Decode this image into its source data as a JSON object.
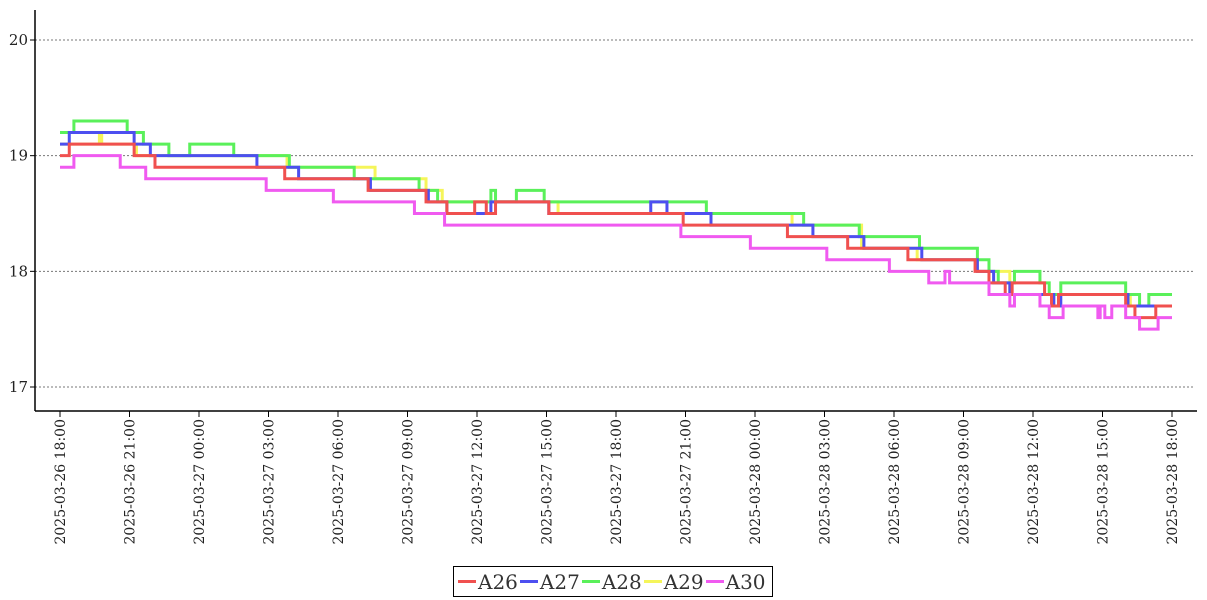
{
  "chart_data": {
    "type": "line",
    "step": true,
    "title": "",
    "xlabel": "",
    "ylabel": "",
    "ylim": [
      16.78,
      20.26
    ],
    "yticks": [
      17,
      18,
      19,
      20
    ],
    "ytick_labels": [
      "17",
      "18",
      "19",
      "20"
    ],
    "x_unit": "hours since 2025-03-26 18:00",
    "xlim": [
      0,
      48
    ],
    "xticks": [
      0,
      3,
      6,
      9,
      12,
      15,
      18,
      21,
      24,
      27,
      30,
      33,
      36,
      39,
      42,
      45,
      48
    ],
    "xtick_labels": [
      "2025-03-26 18:00",
      "2025-03-26 21:00",
      "2025-03-27 00:00",
      "2025-03-27 03:00",
      "2025-03-27 06:00",
      "2025-03-27 09:00",
      "2025-03-27 12:00",
      "2025-03-27 15:00",
      "2025-03-27 18:00",
      "2025-03-27 21:00",
      "2025-03-28 00:00",
      "2025-03-28 03:00",
      "2025-03-28 06:00",
      "2025-03-28 09:00",
      "2025-03-28 12:00",
      "2025-03-28 15:00",
      "2025-03-28 18:00"
    ],
    "grid": "horizontal-dotted",
    "legend_position": "bottom-center",
    "series": [
      {
        "name": "A26",
        "color": "#f0504f",
        "steps": [
          [
            0,
            19.0
          ],
          [
            0.4,
            19.1
          ],
          [
            3.2,
            19.0
          ],
          [
            4.1,
            18.9
          ],
          [
            9.7,
            18.8
          ],
          [
            13.3,
            18.7
          ],
          [
            15.8,
            18.6
          ],
          [
            16.7,
            18.5
          ],
          [
            17.9,
            18.6
          ],
          [
            18.4,
            18.5
          ],
          [
            18.8,
            18.6
          ],
          [
            21.1,
            18.5
          ],
          [
            26.9,
            18.4
          ],
          [
            31.4,
            18.3
          ],
          [
            34.0,
            18.2
          ],
          [
            36.6,
            18.1
          ],
          [
            39.5,
            18.0
          ],
          [
            40.1,
            17.9
          ],
          [
            40.8,
            17.8
          ],
          [
            41.1,
            17.9
          ],
          [
            42.5,
            17.8
          ],
          [
            42.8,
            17.7
          ],
          [
            43.1,
            17.8
          ],
          [
            46.0,
            17.7
          ],
          [
            46.4,
            17.6
          ],
          [
            47.3,
            17.7
          ],
          [
            48.0,
            17.7
          ]
        ]
      },
      {
        "name": "A27",
        "color": "#4d4ff0",
        "steps": [
          [
            0,
            19.1
          ],
          [
            0.4,
            19.2
          ],
          [
            3.2,
            19.1
          ],
          [
            3.9,
            19.0
          ],
          [
            8.5,
            18.9
          ],
          [
            10.3,
            18.8
          ],
          [
            13.4,
            18.7
          ],
          [
            15.9,
            18.6
          ],
          [
            16.7,
            18.5
          ],
          [
            18.6,
            18.6
          ],
          [
            21.1,
            18.5
          ],
          [
            25.5,
            18.6
          ],
          [
            26.2,
            18.5
          ],
          [
            28.1,
            18.4
          ],
          [
            32.5,
            18.3
          ],
          [
            34.7,
            18.2
          ],
          [
            37.2,
            18.1
          ],
          [
            39.6,
            18.0
          ],
          [
            40.3,
            17.9
          ],
          [
            41.0,
            17.8
          ],
          [
            42.9,
            17.7
          ],
          [
            43.2,
            17.8
          ],
          [
            46.1,
            17.7
          ],
          [
            48.0,
            17.7
          ]
        ]
      },
      {
        "name": "A28",
        "color": "#5af05a",
        "steps": [
          [
            0,
            19.2
          ],
          [
            0.6,
            19.3
          ],
          [
            2.9,
            19.2
          ],
          [
            3.6,
            19.1
          ],
          [
            4.7,
            19.0
          ],
          [
            5.6,
            19.1
          ],
          [
            7.5,
            19.0
          ],
          [
            9.9,
            18.9
          ],
          [
            12.7,
            18.8
          ],
          [
            15.5,
            18.7
          ],
          [
            16.3,
            18.6
          ],
          [
            18.6,
            18.7
          ],
          [
            18.8,
            18.6
          ],
          [
            19.7,
            18.7
          ],
          [
            20.9,
            18.6
          ],
          [
            27.9,
            18.5
          ],
          [
            32.1,
            18.4
          ],
          [
            34.5,
            18.3
          ],
          [
            37.1,
            18.2
          ],
          [
            39.6,
            18.1
          ],
          [
            40.1,
            18.0
          ],
          [
            40.5,
            17.9
          ],
          [
            41.2,
            18.0
          ],
          [
            42.3,
            17.9
          ],
          [
            42.7,
            17.8
          ],
          [
            43.2,
            17.9
          ],
          [
            46.0,
            17.8
          ],
          [
            46.6,
            17.7
          ],
          [
            47.0,
            17.8
          ],
          [
            48.0,
            17.8
          ]
        ]
      },
      {
        "name": "A29",
        "color": "#f5f55a",
        "steps": [
          [
            0,
            19.1
          ],
          [
            1.7,
            19.2
          ],
          [
            1.8,
            19.1
          ],
          [
            3.3,
            19.0
          ],
          [
            9.8,
            18.9
          ],
          [
            13.6,
            18.8
          ],
          [
            15.8,
            18.7
          ],
          [
            16.5,
            18.6
          ],
          [
            21.5,
            18.5
          ],
          [
            27.1,
            18.5
          ],
          [
            31.6,
            18.4
          ],
          [
            34.6,
            18.2
          ],
          [
            37.0,
            18.1
          ],
          [
            39.6,
            18.0
          ],
          [
            41.0,
            17.8
          ],
          [
            44.7,
            17.8
          ],
          [
            46.2,
            17.7
          ],
          [
            48.0,
            17.7
          ]
        ]
      },
      {
        "name": "A30",
        "color": "#f05af0",
        "steps": [
          [
            0,
            18.9
          ],
          [
            0.6,
            19.0
          ],
          [
            2.6,
            18.9
          ],
          [
            3.7,
            18.8
          ],
          [
            8.9,
            18.7
          ],
          [
            11.8,
            18.6
          ],
          [
            15.3,
            18.5
          ],
          [
            16.6,
            18.4
          ],
          [
            26.8,
            18.3
          ],
          [
            29.8,
            18.2
          ],
          [
            33.1,
            18.1
          ],
          [
            35.8,
            18.0
          ],
          [
            37.5,
            17.9
          ],
          [
            38.2,
            18.0
          ],
          [
            38.4,
            17.9
          ],
          [
            40.1,
            17.8
          ],
          [
            41.0,
            17.7
          ],
          [
            41.2,
            17.8
          ],
          [
            42.3,
            17.7
          ],
          [
            42.7,
            17.6
          ],
          [
            43.3,
            17.7
          ],
          [
            44.8,
            17.6
          ],
          [
            44.9,
            17.7
          ],
          [
            45.1,
            17.6
          ],
          [
            45.4,
            17.7
          ],
          [
            46.0,
            17.6
          ],
          [
            46.6,
            17.5
          ],
          [
            47.4,
            17.6
          ],
          [
            48.0,
            17.6
          ]
        ]
      }
    ]
  }
}
